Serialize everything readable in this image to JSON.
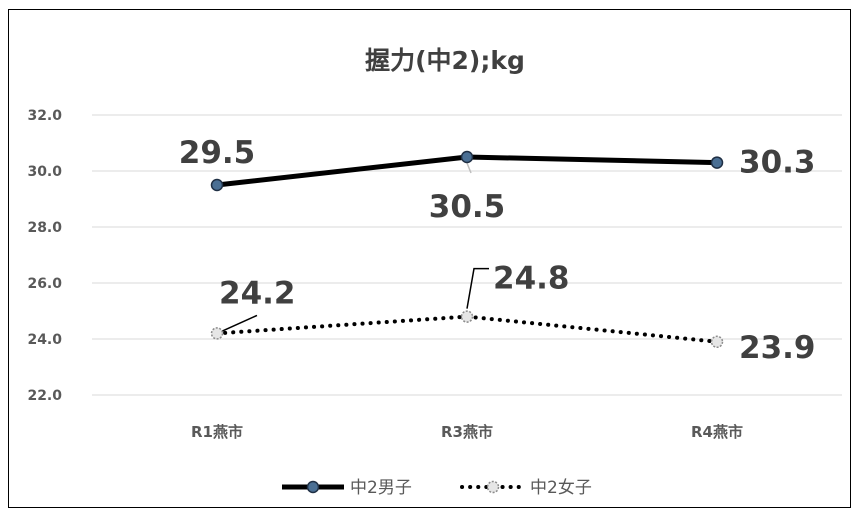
{
  "chart_data": {
    "type": "line",
    "title": "握力(中2);kg",
    "categories": [
      "R1燕市",
      "R3燕市",
      "R4燕市"
    ],
    "ylim": [
      22.0,
      32.0
    ],
    "yticks": [
      "22.0",
      "24.0",
      "26.0",
      "28.0",
      "30.0",
      "32.0"
    ],
    "grid": true,
    "legend_position": "bottom",
    "series": [
      {
        "name": "中2男子",
        "values": [
          29.5,
          30.5,
          30.3
        ],
        "labels": [
          "29.5",
          "30.5",
          "30.3"
        ],
        "line_color": "#000000",
        "marker_color": "#4a6f94",
        "style": "solid"
      },
      {
        "name": "中2女子",
        "values": [
          24.2,
          24.8,
          23.9
        ],
        "labels": [
          "24.2",
          "24.8",
          "23.9"
        ],
        "line_color": "#000000",
        "marker_color": "#e6e6e6",
        "style": "dotted"
      }
    ]
  }
}
